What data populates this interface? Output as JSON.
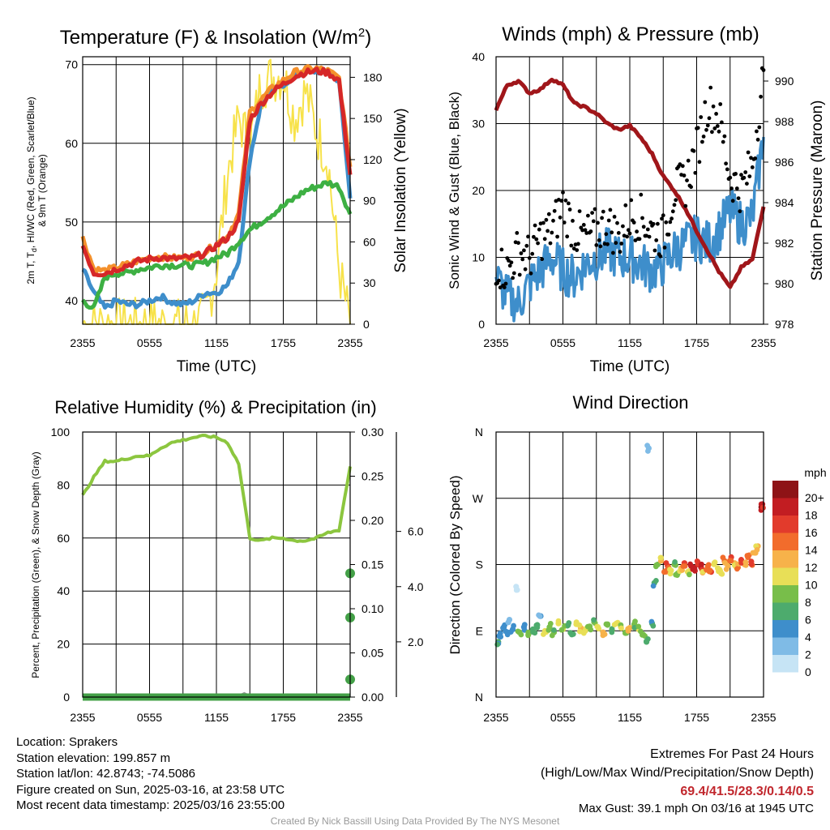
{
  "colors": {
    "red": "#d62728",
    "orange": "#f4902b",
    "green": "#3db043",
    "blue": "#3e8ecb",
    "yellow": "#f7e24a",
    "maroon": "#a0161a",
    "black": "#000000",
    "rh_green": "#8cc63f",
    "precip_green": "#43a047"
  },
  "panels": {
    "temp": {
      "title": "Temperature (F) & Insolation (W/m",
      "title_sup": "2",
      "title_end": ")",
      "ylabel_line1": "2m T, T",
      "ylabel_sub": "d",
      "ylabel_line1_end": ", HI/WC (Red, Green, Scarlet/Blue)",
      "ylabel_line2": "& 9m T (Orange)",
      "y2label": "Solar Insolation (Yellow)",
      "xlabel": "Time (UTC)",
      "xticks": [
        "2355",
        "0555",
        "1155",
        "1755",
        "2355"
      ],
      "yticks": [
        "40",
        "50",
        "60",
        "70"
      ],
      "y2ticks": [
        "0",
        "30",
        "60",
        "90",
        "120",
        "150",
        "180"
      ]
    },
    "wind": {
      "title": "Winds (mph) & Pressure (mb)",
      "ylabel": "Sonic Wind & Gust (Blue, Black)",
      "y2label": "Station Pressure (Maroon)",
      "xlabel": "Time (UTC)",
      "xticks": [
        "2355",
        "0555",
        "1155",
        "1755",
        "2355"
      ],
      "yticks": [
        "0",
        "10",
        "20",
        "30",
        "40"
      ],
      "y2ticks": [
        "978",
        "980",
        "982",
        "984",
        "986",
        "988",
        "990"
      ]
    },
    "rh": {
      "title": "Relative Humidity (%) & Precipitation (in)",
      "ylabel": "Percent, Precipitation (Green), & Snow Depth (Gray)",
      "xticks": [
        "2355",
        "0555",
        "1155",
        "1755",
        "2355"
      ],
      "yticks": [
        "0",
        "20",
        "40",
        "60",
        "80",
        "100"
      ],
      "y2ticks": [
        "0.00",
        "0.05",
        "0.10",
        "0.15",
        "0.20",
        "0.25",
        "0.30"
      ],
      "y3ticks": [
        "2.0",
        "4.0",
        "6.0"
      ]
    },
    "dir": {
      "title": "Wind Direction",
      "ylabel": "Direction (Colored By Speed)",
      "xticks": [
        "2355",
        "0555",
        "1155",
        "1755",
        "2355"
      ],
      "yticks": [
        "N",
        "E",
        "S",
        "W",
        "N"
      ],
      "legend_title": "mph",
      "legend_labels": [
        "0",
        "2",
        "4",
        "6",
        "8",
        "10",
        "12",
        "14",
        "16",
        "18",
        "20+"
      ],
      "legend_colors": [
        "#c6e4f5",
        "#7fbbe6",
        "#3e8ecb",
        "#4dab6d",
        "#78be4a",
        "#e8df57",
        "#f7b24a",
        "#f26c2c",
        "#e23b2c",
        "#c21d22",
        "#8e1316"
      ]
    }
  },
  "info": {
    "location": "Location: Sprakers",
    "elevation": "Station elevation: 199.857 m",
    "latlon": "Station lat/lon: 42.8743; -74.5086",
    "created": "Figure created on Sun, 2025-03-16, at 23:58 UTC",
    "recent": "Most recent data timestamp: 2025/03/16 23:55:00"
  },
  "extremes": {
    "title": "Extremes For Past 24 Hours",
    "subtitle": "(High/Low/Max Wind/Precipitation/Snow Depth)",
    "values": "69.4/41.5/28.3/0.14/0.5",
    "gust": "Max Gust: 39.1 mph On 03/16 at 1945 UTC"
  },
  "footer": "Created By Nick Bassill Using Data Provided By The NYS Mesonet",
  "chart_data": [
    {
      "type": "line",
      "title": "Temperature (F) & Insolation (W/m2)",
      "xlabel": "Time (UTC)",
      "ylabel": "2m T, Td, HI/WC (Red, Green, Scarlet/Blue) & 9m T (Orange)",
      "y2label": "Solar Insolation (Yellow)",
      "x_hours": [
        0,
        1,
        2,
        3,
        4,
        5,
        6,
        7,
        8,
        9,
        10,
        11,
        12,
        13,
        14,
        15,
        16,
        17,
        18,
        19,
        20,
        21,
        22,
        23,
        24
      ],
      "ylim": [
        37,
        71
      ],
      "y2lim": [
        0,
        195
      ],
      "series": [
        {
          "name": "2m T (Red)",
          "axis": "left",
          "values": [
            47,
            43.5,
            43.5,
            44,
            44.5,
            45,
            45.3,
            45.5,
            45.3,
            45.4,
            45.5,
            46,
            47,
            48,
            50,
            63,
            65,
            66.5,
            67.5,
            68.5,
            69,
            69.2,
            69,
            68,
            56
          ]
        },
        {
          "name": "9m T (Orange)",
          "axis": "left",
          "values": [
            48,
            44,
            43.8,
            44.2,
            44.6,
            45.1,
            45.4,
            45.6,
            45.4,
            45.5,
            45.6,
            46.2,
            47.2,
            48.2,
            51,
            64,
            65.5,
            67,
            68,
            69,
            69.4,
            69.5,
            69.2,
            68.3,
            57
          ]
        },
        {
          "name": "Td (Green)",
          "axis": "left",
          "values": [
            40,
            39,
            43,
            43.5,
            43.5,
            44,
            44.2,
            44.5,
            44.5,
            44.5,
            44.5,
            44.8,
            45.5,
            46,
            47.5,
            49,
            50,
            51,
            52,
            53,
            54,
            54.5,
            55,
            54.5,
            51
          ]
        },
        {
          "name": "HI/WC (Blue)",
          "axis": "left",
          "values": [
            44,
            41,
            39,
            40,
            39.5,
            39.5,
            40,
            40.5,
            39.8,
            39.5,
            40,
            41,
            41,
            42,
            45,
            58,
            65,
            66.5,
            67.5,
            68.5,
            69,
            69.2,
            69,
            68,
            53
          ]
        },
        {
          "name": "Solar Insolation (Yellow)",
          "axis": "right",
          "values": [
            0,
            0,
            0,
            0,
            0,
            0,
            0,
            0,
            0,
            0,
            0,
            5,
            40,
            110,
            150,
            130,
            175,
            180,
            182,
            150,
            170,
            140,
            120,
            40,
            0
          ]
        }
      ]
    },
    {
      "type": "line",
      "title": "Winds (mph) & Pressure (mb)",
      "xlabel": "Time (UTC)",
      "ylabel": "Sonic Wind & Gust (Blue, Black)",
      "y2label": "Station Pressure (Maroon)",
      "x_hours": [
        0,
        1,
        2,
        3,
        4,
        5,
        6,
        7,
        8,
        9,
        10,
        11,
        12,
        13,
        14,
        15,
        16,
        17,
        18,
        19,
        20,
        21,
        22,
        23,
        24
      ],
      "ylim": [
        0,
        40
      ],
      "y2lim": [
        978,
        991.2
      ],
      "series": [
        {
          "name": "Sonic Wind (Blue)",
          "axis": "left",
          "values": [
            7,
            4,
            3,
            6,
            8,
            10,
            8,
            7,
            9,
            10,
            11,
            10,
            10,
            9,
            8,
            9,
            11,
            12,
            13,
            12,
            14,
            17,
            15,
            16,
            28
          ]
        },
        {
          "name": "Gust (Black)",
          "axis": "left",
          "values": [
            9,
            8,
            11,
            10,
            13,
            14,
            18,
            14,
            13,
            14,
            15,
            13,
            16,
            16,
            14,
            13,
            20,
            21,
            26,
            33,
            31,
            22,
            20,
            24,
            38
          ]
        },
        {
          "name": "Station Pressure (Maroon)",
          "axis": "right",
          "values": [
            988.6,
            989.8,
            990,
            989.4,
            989.6,
            990.1,
            989.8,
            988.9,
            988.7,
            988.4,
            987.9,
            987.6,
            987.8,
            987.2,
            986.4,
            985.3,
            984.6,
            983.7,
            982.6,
            981.6,
            980.6,
            979.8,
            980.8,
            981.2,
            983.8
          ]
        }
      ]
    },
    {
      "type": "line",
      "title": "Relative Humidity (%) & Precipitation (in)",
      "ylabel": "Percent, Precipitation (Green), & Snow Depth (Gray)",
      "x_hours": [
        0,
        1,
        2,
        3,
        4,
        5,
        6,
        7,
        8,
        9,
        10,
        11,
        12,
        13,
        14,
        15,
        16,
        17,
        18,
        19,
        20,
        21,
        22,
        23,
        24
      ],
      "ylim": [
        0,
        100
      ],
      "y2lim": [
        0,
        0.3
      ],
      "series": [
        {
          "name": "Relative Humidity (Green)",
          "axis": "left",
          "values": [
            76,
            83,
            89,
            89,
            90,
            91,
            91,
            94,
            96,
            97,
            98,
            98.5,
            98,
            96,
            88,
            60,
            59,
            60,
            60,
            59,
            59,
            60,
            62,
            63,
            87
          ]
        },
        {
          "name": "Precipitation (Green)",
          "axis": "right",
          "values": [
            0,
            0,
            0,
            0,
            0,
            0,
            0,
            0,
            0,
            0,
            0,
            0,
            0,
            0,
            0,
            0,
            0,
            0,
            0,
            0,
            0,
            0,
            0,
            0,
            0.14
          ]
        },
        {
          "name": "Snow Depth (Gray)",
          "axis": "left",
          "values": [
            0,
            0,
            0,
            0,
            0,
            0,
            0,
            0,
            0,
            0,
            0,
            0,
            0,
            0,
            0.5,
            0.5,
            0,
            0,
            0,
            0,
            0,
            0,
            0,
            0,
            0
          ]
        }
      ],
      "precip_points": [
        {
          "x_hour": 24,
          "value": 0.02
        },
        {
          "x_hour": 24,
          "value": 0.09
        },
        {
          "x_hour": 24,
          "value": 0.14
        }
      ]
    },
    {
      "type": "scatter",
      "title": "Wind Direction",
      "ylabel": "Direction (Colored By Speed)",
      "yticks": [
        "N",
        "E",
        "S",
        "W",
        "N"
      ],
      "ylim": [
        0,
        360
      ],
      "points": [
        {
          "x": 0.2,
          "dir": 75,
          "spd": 6
        },
        {
          "x": 0.4,
          "dir": 82,
          "spd": 5
        },
        {
          "x": 0.7,
          "dir": 95,
          "spd": 4
        },
        {
          "x": 1.0,
          "dir": 88,
          "spd": 5
        },
        {
          "x": 1.2,
          "dir": 105,
          "spd": 3
        },
        {
          "x": 1.5,
          "dir": 92,
          "spd": 4
        },
        {
          "x": 1.8,
          "dir": 150,
          "spd": 1
        },
        {
          "x": 2.1,
          "dir": 88,
          "spd": 8
        },
        {
          "x": 2.5,
          "dir": 95,
          "spd": 5
        },
        {
          "x": 2.9,
          "dir": 85,
          "spd": 9
        },
        {
          "x": 3.3,
          "dir": 92,
          "spd": 7
        },
        {
          "x": 3.7,
          "dir": 98,
          "spd": 6
        },
        {
          "x": 4.0,
          "dir": 110,
          "spd": 4
        },
        {
          "x": 4.4,
          "dir": 90,
          "spd": 10
        },
        {
          "x": 4.8,
          "dir": 95,
          "spd": 9
        },
        {
          "x": 5.2,
          "dir": 88,
          "spd": 8
        },
        {
          "x": 5.6,
          "dir": 100,
          "spd": 11
        },
        {
          "x": 6.0,
          "dir": 92,
          "spd": 10
        },
        {
          "x": 6.4,
          "dir": 97,
          "spd": 7
        },
        {
          "x": 6.8,
          "dir": 85,
          "spd": 6
        },
        {
          "x": 7.2,
          "dir": 99,
          "spd": 10
        },
        {
          "x": 7.6,
          "dir": 94,
          "spd": 12
        },
        {
          "x": 8.0,
          "dir": 90,
          "spd": 11
        },
        {
          "x": 8.4,
          "dir": 96,
          "spd": 9
        },
        {
          "x": 8.8,
          "dir": 102,
          "spd": 8
        },
        {
          "x": 9.2,
          "dir": 93,
          "spd": 10
        },
        {
          "x": 9.6,
          "dir": 88,
          "spd": 12
        },
        {
          "x": 10.0,
          "dir": 98,
          "spd": 9
        },
        {
          "x": 10.4,
          "dir": 91,
          "spd": 8
        },
        {
          "x": 10.8,
          "dir": 100,
          "spd": 11
        },
        {
          "x": 11.2,
          "dir": 95,
          "spd": 10
        },
        {
          "x": 11.6,
          "dir": 87,
          "spd": 9
        },
        {
          "x": 12.0,
          "dir": 94,
          "spd": 12
        },
        {
          "x": 12.4,
          "dir": 99,
          "spd": 8
        },
        {
          "x": 12.8,
          "dir": 92,
          "spd": 10
        },
        {
          "x": 13.2,
          "dir": 85,
          "spd": 9
        },
        {
          "x": 13.5,
          "dir": 75,
          "spd": 7
        },
        {
          "x": 13.7,
          "dir": 338,
          "spd": 3
        },
        {
          "x": 14.0,
          "dir": 100,
          "spd": 6
        },
        {
          "x": 14.2,
          "dir": 155,
          "spd": 6
        },
        {
          "x": 14.5,
          "dir": 180,
          "spd": 9
        },
        {
          "x": 14.8,
          "dir": 185,
          "spd": 12
        },
        {
          "x": 15.1,
          "dir": 170,
          "spd": 14
        },
        {
          "x": 15.4,
          "dir": 178,
          "spd": 16
        },
        {
          "x": 15.7,
          "dir": 172,
          "spd": 10
        },
        {
          "x": 16.0,
          "dir": 180,
          "spd": 8
        },
        {
          "x": 16.3,
          "dir": 168,
          "spd": 9
        },
        {
          "x": 16.6,
          "dir": 175,
          "spd": 12
        },
        {
          "x": 16.9,
          "dir": 182,
          "spd": 16
        },
        {
          "x": 17.2,
          "dir": 170,
          "spd": 10
        },
        {
          "x": 17.5,
          "dir": 178,
          "spd": 18
        },
        {
          "x": 17.8,
          "dir": 174,
          "spd": 19
        },
        {
          "x": 18.1,
          "dir": 180,
          "spd": 17
        },
        {
          "x": 18.4,
          "dir": 176,
          "spd": 18
        },
        {
          "x": 18.7,
          "dir": 172,
          "spd": 12
        },
        {
          "x": 19.0,
          "dir": 178,
          "spd": 15
        },
        {
          "x": 19.3,
          "dir": 170,
          "spd": 16
        },
        {
          "x": 19.6,
          "dir": 182,
          "spd": 12
        },
        {
          "x": 19.9,
          "dir": 175,
          "spd": 10
        },
        {
          "x": 20.2,
          "dir": 168,
          "spd": 11
        },
        {
          "x": 20.5,
          "dir": 185,
          "spd": 14
        },
        {
          "x": 20.8,
          "dir": 178,
          "spd": 13
        },
        {
          "x": 21.1,
          "dir": 190,
          "spd": 16
        },
        {
          "x": 21.4,
          "dir": 182,
          "spd": 12
        },
        {
          "x": 21.7,
          "dir": 176,
          "spd": 14
        },
        {
          "x": 22.0,
          "dir": 186,
          "spd": 17
        },
        {
          "x": 22.3,
          "dir": 180,
          "spd": 12
        },
        {
          "x": 22.6,
          "dir": 190,
          "spd": 14
        },
        {
          "x": 22.9,
          "dir": 184,
          "spd": 16
        },
        {
          "x": 23.2,
          "dir": 196,
          "spd": 13
        },
        {
          "x": 23.5,
          "dir": 205,
          "spd": 12
        },
        {
          "x": 23.8,
          "dir": 258,
          "spd": 20
        },
        {
          "x": 23.9,
          "dir": 262,
          "spd": 18
        }
      ]
    }
  ]
}
